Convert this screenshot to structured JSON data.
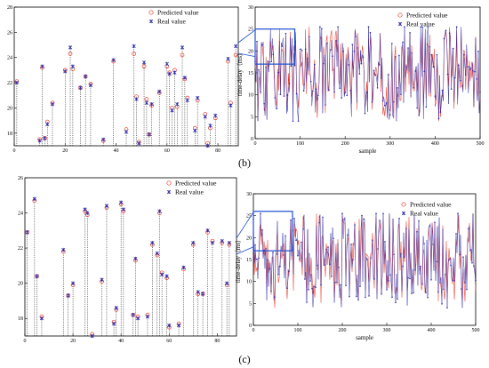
{
  "legend": {
    "predicted": "Predicted value",
    "real": "Real value"
  },
  "colors": {
    "predicted": "#e8392b",
    "real": "#2a2aa8",
    "zoom_box": "#1f4fd0",
    "stem": "#222222"
  },
  "panel_labels": [
    "(b)",
    "(c)"
  ],
  "chart_data": [
    {
      "id": "b-zoom",
      "type": "scatter",
      "xlim": [
        0,
        88
      ],
      "ylim": [
        17,
        28
      ],
      "xticks": [
        0,
        20,
        40,
        60,
        80
      ],
      "yticks": [
        18,
        20,
        22,
        24,
        26,
        28
      ],
      "stem_base": 17,
      "x": [
        1,
        10,
        11,
        12,
        13,
        15,
        20,
        22,
        23,
        26,
        28,
        30,
        35,
        39,
        44,
        47,
        48,
        49,
        51,
        52,
        53,
        54,
        57,
        60,
        61,
        62,
        63,
        64,
        66,
        67,
        68,
        71,
        72,
        75,
        76,
        77,
        79,
        84,
        85,
        87
      ],
      "predicted": [
        22.1,
        17.5,
        23.2,
        17.6,
        18.9,
        20.4,
        23.0,
        24.3,
        23.1,
        21.6,
        22.5,
        21.9,
        17.4,
        23.7,
        18.3,
        24.3,
        20.9,
        17.3,
        23.3,
        20.7,
        17.9,
        20.2,
        21.2,
        23.3,
        22.8,
        20.0,
        23.0,
        20.1,
        24.2,
        22.3,
        20.8,
        18.4,
        20.6,
        19.5,
        17.2,
        18.4,
        19.2,
        23.7,
        20.4,
        24.2
      ],
      "real": [
        22.0,
        17.4,
        23.3,
        17.6,
        18.7,
        20.3,
        22.9,
        24.8,
        23.3,
        21.6,
        22.5,
        21.8,
        17.5,
        23.8,
        18.1,
        24.9,
        20.7,
        17.2,
        23.6,
        20.4,
        17.9,
        20.3,
        21.3,
        23.5,
        22.7,
        19.8,
        22.8,
        20.3,
        24.8,
        22.4,
        20.6,
        18.2,
        20.8,
        19.3,
        17.0,
        18.6,
        19.4,
        23.9,
        20.2,
        24.9
      ]
    },
    {
      "id": "b-full",
      "type": "line",
      "xlabel": "sample",
      "ylabel": "time-delay（ms）",
      "xlim": [
        0,
        500
      ],
      "ylim": [
        0,
        30
      ],
      "xticks": [
        0,
        100,
        200,
        300,
        400,
        500
      ],
      "yticks": [
        0,
        5,
        10,
        15,
        20,
        25,
        30
      ],
      "zoom_box": {
        "x": [
          0,
          88
        ],
        "y": [
          17,
          25
        ]
      }
    },
    {
      "id": "c-zoom",
      "type": "scatter",
      "xlim": [
        0,
        88
      ],
      "ylim": [
        17,
        26
      ],
      "xticks": [
        0,
        20,
        40,
        60,
        80
      ],
      "yticks": [
        18,
        20,
        22,
        24,
        26
      ],
      "stem_base": 17,
      "x": [
        1,
        4,
        5,
        7,
        16,
        18,
        20,
        25,
        26,
        28,
        32,
        34,
        37,
        38,
        40,
        41,
        45,
        46,
        47,
        51,
        53,
        55,
        56,
        57,
        59,
        60,
        64,
        66,
        70,
        72,
        74,
        76,
        78,
        82,
        84,
        85
      ],
      "predicted": [
        22.9,
        24.7,
        20.4,
        18.1,
        21.8,
        19.3,
        19.9,
        24.1,
        23.9,
        17.1,
        20.1,
        24.3,
        17.8,
        18.5,
        24.5,
        24.1,
        18.2,
        21.3,
        18.1,
        18.2,
        22.2,
        21.6,
        24.0,
        20.6,
        20.3,
        17.5,
        17.7,
        20.8,
        22.2,
        19.4,
        19.4,
        22.9,
        22.4,
        22.3,
        19.9,
        22.2
      ],
      "real": [
        22.9,
        24.8,
        20.4,
        18.0,
        21.9,
        19.3,
        20.0,
        24.2,
        24.0,
        17.0,
        20.2,
        24.4,
        17.7,
        18.6,
        24.6,
        24.2,
        18.2,
        21.4,
        18.0,
        18.1,
        22.3,
        21.7,
        24.1,
        20.5,
        20.4,
        17.6,
        17.6,
        20.9,
        22.3,
        19.5,
        19.4,
        23.0,
        22.3,
        22.4,
        20.0,
        22.3
      ]
    },
    {
      "id": "c-full",
      "type": "line",
      "xlabel": "sample",
      "ylabel": "time-delay（ms）",
      "xlim": [
        0,
        500
      ],
      "ylim": [
        0,
        30
      ],
      "xticks": [
        0,
        100,
        200,
        300,
        400,
        500
      ],
      "yticks": [
        0,
        5,
        10,
        15,
        20,
        25,
        30
      ],
      "zoom_box": {
        "x": [
          0,
          88
        ],
        "y": [
          17,
          26
        ]
      }
    }
  ]
}
